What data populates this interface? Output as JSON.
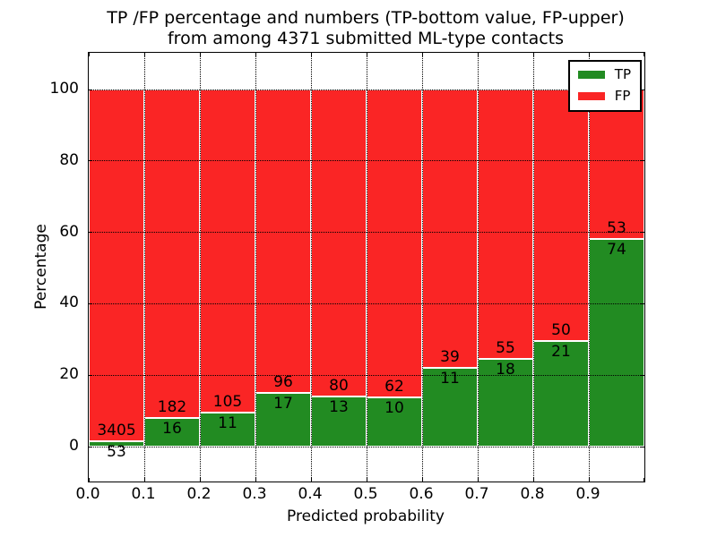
{
  "figure": {
    "title_line1": "TP /FP percentage and numbers (TP-bottom value, FP-upper)",
    "title_line2": "from among 4371 submitted ML-type contacts"
  },
  "axes": {
    "xlabel": "Predicted probability",
    "ylabel": "Percentage",
    "xtick_labels": [
      "0.0",
      "0.1",
      "0.2",
      "0.3",
      "0.4",
      "0.5",
      "0.6",
      "0.7",
      "0.8",
      "0.9"
    ],
    "ytick_labels": [
      "0",
      "20",
      "40",
      "60",
      "80",
      "100"
    ],
    "ytick_values": [
      0,
      20,
      40,
      60,
      80,
      100
    ]
  },
  "legend": {
    "entries": [
      {
        "label": "TP",
        "color": "#228b22"
      },
      {
        "label": "FP",
        "color": "#fa2525"
      }
    ]
  },
  "colors": {
    "tp_green": "#228b22",
    "fp_red": "#fa2525",
    "bar_edge": "#ffffff",
    "grid": "#000000",
    "background": "#ffffff"
  },
  "chart_data": {
    "type": "bar",
    "stacked": true,
    "normalized": "percent-of-bin",
    "title": "TP /FP percentage and numbers (TP-bottom value, FP-upper) from among 4371 submitted ML-type contacts",
    "xlabel": "Predicted probability",
    "ylabel": "Percentage",
    "bin_edges": [
      0.0,
      0.1,
      0.2,
      0.3,
      0.4,
      0.5,
      0.6,
      0.7,
      0.8,
      0.9,
      1.0
    ],
    "categories": [
      "0.0-0.1",
      "0.1-0.2",
      "0.2-0.3",
      "0.3-0.4",
      "0.4-0.5",
      "0.5-0.6",
      "0.6-0.7",
      "0.7-0.8",
      "0.8-0.9",
      "0.9-1.0"
    ],
    "series": [
      {
        "name": "TP",
        "color": "#228b22",
        "counts": [
          53,
          16,
          11,
          17,
          13,
          10,
          11,
          18,
          21,
          74
        ]
      },
      {
        "name": "FP",
        "color": "#fa2525",
        "counts": [
          3405,
          182,
          105,
          96,
          80,
          62,
          39,
          55,
          50,
          53
        ]
      }
    ],
    "tp_percent_of_bin": [
      1.53,
      8.08,
      9.48,
      15.04,
      13.98,
      13.89,
      22.0,
      24.66,
      29.58,
      58.27
    ],
    "total_contacts": 4371,
    "xlim": [
      0.0,
      1.0
    ],
    "ylim": [
      0,
      100
    ],
    "yticks": [
      0,
      20,
      40,
      60,
      80,
      100
    ],
    "xticks": [
      0.0,
      0.1,
      0.2,
      0.3,
      0.4,
      0.5,
      0.6,
      0.7,
      0.8,
      0.9
    ],
    "grid": true,
    "grid_style": "dotted",
    "legend_position": "upper right"
  }
}
